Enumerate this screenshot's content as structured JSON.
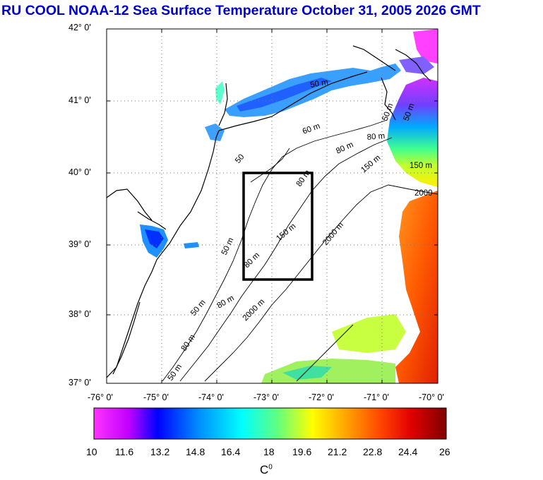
{
  "title": "RU COOL  NOAA-12 Sea Surface Temperature October 31, 2005 2026 GMT",
  "y_axis": [
    "42° 0'",
    "41° 0'",
    "40° 0'",
    "39° 0'",
    "38° 0'",
    "37° 0'"
  ],
  "x_axis": [
    "-76° 0'",
    "-75° 0'",
    "-74° 0'",
    "-73° 0'",
    "-72° 0'",
    "-71° 0'",
    "-70° 0'"
  ],
  "colorbar": {
    "ticks": [
      "10",
      "11.6",
      "13.2",
      "14.8",
      "16.4",
      "18",
      "19.6",
      "21.2",
      "22.8",
      "24.4",
      "26"
    ],
    "unit": "C",
    "unit_sup": "0",
    "colors": [
      "#ff33ff",
      "#0000ff",
      "#00a0ff",
      "#00ffff",
      "#80ff40",
      "#ffff00",
      "#ff8800",
      "#ff0000",
      "#8b0000"
    ]
  },
  "contours": {
    "c1": "50 m",
    "c2": "80 m",
    "c3": "60 m",
    "c4": "80 m",
    "c5": "80 m",
    "c6": "50 m",
    "c7": "150 m",
    "c8": "2000",
    "c9": "80 m",
    "c10": "150 m",
    "c11": "2000 m",
    "c12": "50 m",
    "c13": "80 m",
    "c14": "50 m",
    "c15": "150 m",
    "c16": "2000 m",
    "c17": "80 m",
    "c18": "50 m",
    "c19": "50",
    "c20": "50 m"
  }
}
